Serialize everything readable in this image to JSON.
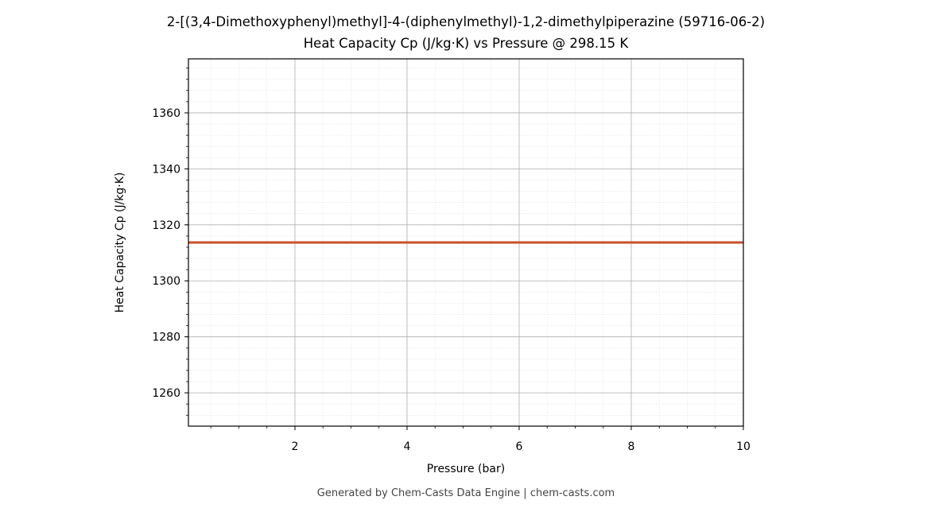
{
  "chart_data": {
    "type": "line",
    "title": "2-[(3,4-Dimethoxyphenyl)methyl]-4-(diphenylmethyl)-1,2-dimethylpiperazine (59716-06-2)",
    "subtitle": "Heat Capacity Cp (J/kg·K) vs Pressure @ 298.15 K",
    "x_label": "Pressure (bar)",
    "y_label": "Heat Capacity Cp (J/kg·K)",
    "x": [
      0.1,
      10
    ],
    "series": [
      {
        "name": "Cp",
        "color": "#c8502a",
        "values": [
          1313.7,
          1313.7
        ]
      }
    ],
    "xlim": [
      0.1,
      10
    ],
    "xticks": [
      2,
      4,
      6,
      8,
      10
    ],
    "ylim": [
      1248.1,
      1379.3
    ],
    "yticks": [
      1260,
      1280,
      1300,
      1320,
      1340,
      1360
    ],
    "grid": true,
    "minor_grid": true,
    "footer": "Generated by Chem-Casts Data Engine | chem-casts.com"
  }
}
